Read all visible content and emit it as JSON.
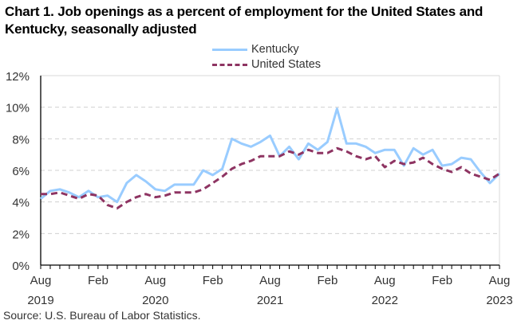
{
  "chart_data": {
    "type": "line",
    "title": "Chart 1. Job openings as a percent of employment for the United States and Kentucky, seasonally adjusted",
    "xlabel": "",
    "ylabel": "",
    "ylim": [
      0,
      12
    ],
    "y_ticks": [
      0,
      2,
      4,
      6,
      8,
      10,
      12
    ],
    "y_tick_labels": [
      "0%",
      "2%",
      "4%",
      "6%",
      "8%",
      "10%",
      "12%"
    ],
    "grid": true,
    "legend_position": "top-center",
    "x_range": [
      "Aug 2019",
      "Aug 2023"
    ],
    "x_major_ticks": [
      {
        "index": 0,
        "month": "Aug",
        "year": "2019"
      },
      {
        "index": 6,
        "month": "Feb",
        "year": ""
      },
      {
        "index": 12,
        "month": "Aug",
        "year": "2020"
      },
      {
        "index": 18,
        "month": "Feb",
        "year": ""
      },
      {
        "index": 24,
        "month": "Aug",
        "year": "2021"
      },
      {
        "index": 30,
        "month": "Feb",
        "year": ""
      },
      {
        "index": 36,
        "month": "Aug",
        "year": "2022"
      },
      {
        "index": 42,
        "month": "Feb",
        "year": ""
      },
      {
        "index": 48,
        "month": "Aug",
        "year": "2023"
      }
    ],
    "x": [
      "2019-08",
      "2019-09",
      "2019-10",
      "2019-11",
      "2019-12",
      "2020-01",
      "2020-02",
      "2020-03",
      "2020-04",
      "2020-05",
      "2020-06",
      "2020-07",
      "2020-08",
      "2020-09",
      "2020-10",
      "2020-11",
      "2020-12",
      "2021-01",
      "2021-02",
      "2021-03",
      "2021-04",
      "2021-05",
      "2021-06",
      "2021-07",
      "2021-08",
      "2021-09",
      "2021-10",
      "2021-11",
      "2021-12",
      "2022-01",
      "2022-02",
      "2022-03",
      "2022-04",
      "2022-05",
      "2022-06",
      "2022-07",
      "2022-08",
      "2022-09",
      "2022-10",
      "2022-11",
      "2022-12",
      "2023-01",
      "2023-02",
      "2023-03",
      "2023-04",
      "2023-05",
      "2023-06",
      "2023-07",
      "2023-08"
    ],
    "series": [
      {
        "name": "Kentucky",
        "color": "#99ccff",
        "style": "solid",
        "values": [
          4.2,
          4.7,
          4.8,
          4.6,
          4.3,
          4.7,
          4.3,
          4.4,
          4.0,
          5.2,
          5.7,
          5.3,
          4.8,
          4.7,
          5.1,
          5.1,
          5.1,
          6.0,
          5.7,
          6.1,
          8.0,
          7.7,
          7.5,
          7.8,
          8.2,
          6.9,
          7.5,
          6.7,
          7.7,
          7.3,
          7.8,
          9.9,
          7.7,
          7.7,
          7.5,
          7.1,
          7.3,
          7.3,
          6.3,
          7.4,
          7.0,
          7.3,
          6.3,
          6.4,
          6.8,
          6.7,
          5.9,
          5.2,
          5.8
        ]
      },
      {
        "name": "United States",
        "color": "#8e3462",
        "style": "dashed",
        "values": [
          4.5,
          4.5,
          4.6,
          4.4,
          4.2,
          4.5,
          4.4,
          3.8,
          3.6,
          4.0,
          4.3,
          4.5,
          4.3,
          4.4,
          4.6,
          4.6,
          4.6,
          4.8,
          5.2,
          5.6,
          6.1,
          6.4,
          6.6,
          6.9,
          6.9,
          6.9,
          7.2,
          7.0,
          7.3,
          7.1,
          7.1,
          7.4,
          7.2,
          6.9,
          6.7,
          6.9,
          6.2,
          6.6,
          6.4,
          6.5,
          6.8,
          6.4,
          6.1,
          5.9,
          6.2,
          5.8,
          5.6,
          5.4,
          5.8
        ]
      }
    ]
  },
  "legend": {
    "items": [
      {
        "label": "Kentucky"
      },
      {
        "label": "United States"
      }
    ]
  },
  "source": "Source: U.S. Bureau of Labor Statistics."
}
